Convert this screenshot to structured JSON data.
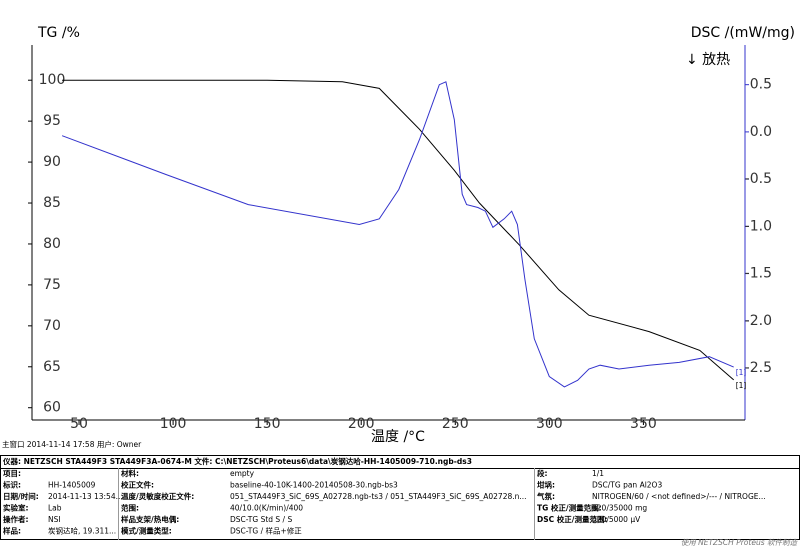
{
  "chart_data": {
    "type": "line",
    "y_label": "TG /%",
    "y2_label": "DSC /(mW/mg)",
    "y2_note": "↓ 放热",
    "x_label": "温度 /°C",
    "xlim": [
      25,
      404
    ],
    "xticks": [
      50,
      100,
      150,
      200,
      250,
      300,
      350
    ],
    "ylim": [
      58.5,
      104.3
    ],
    "yticks": [
      60,
      65,
      70,
      75,
      80,
      85,
      90,
      95,
      100
    ],
    "y2lim": [
      -3.05,
      0.92
    ],
    "y2ticks": [
      0.5,
      {
        "value": 0,
        "label": "0.0"
      },
      -0.5,
      {
        "value": -1,
        "label": "-1.0"
      },
      -1.5,
      {
        "value": -2,
        "label": "-2.0"
      },
      -2.5
    ],
    "series": [
      {
        "name": "[1]",
        "color": "#000000",
        "x": [
          41,
          100,
          150,
          190,
          209.6,
          231,
          249.5,
          262.8,
          284,
          305,
          321,
          353,
          380,
          398
        ],
        "values": [
          100,
          100,
          100,
          99.8,
          99,
          94,
          89,
          85,
          79.9,
          74.4,
          71.3,
          69.3,
          67,
          63.4
        ]
      },
      {
        "name": "[1]",
        "color": "#3333cc",
        "axis": "y2",
        "x": [
          41,
          96,
          140,
          199,
          209.6,
          220,
          231,
          241.5,
          245,
          249.5,
          253.7,
          256,
          262,
          266,
          270,
          276,
          280,
          283,
          287,
          292,
          300,
          308,
          315,
          321,
          327,
          337,
          353,
          369,
          385,
          398
        ],
        "values": [
          -0.04,
          -0.45,
          -0.77,
          -0.98,
          -0.92,
          -0.61,
          -0.08,
          0.5,
          0.53,
          0.13,
          -0.66,
          -0.77,
          -0.8,
          -0.84,
          -1.01,
          -0.92,
          -0.84,
          -0.98,
          -1.56,
          -2.19,
          -2.59,
          -2.7,
          -2.63,
          -2.51,
          -2.47,
          -2.51,
          -2.47,
          -2.44,
          -2.38,
          -2.49
        ]
      }
    ]
  },
  "info": {
    "status": "主窗口  2014-11-14 17:58  用户: Owner",
    "header": "仪器: NETZSCH STA449F3 STA449F3A-0674-M   文件: C:\\NETZSCH\\Proteus6\\data\\炭钢达哈-HH-1405009-710.ngb-ds3",
    "rows": [
      [
        "项目:",
        "",
        "材料:",
        "empty",
        "段:",
        "1/1"
      ],
      [
        "标识:",
        "HH-1405009",
        "校正文件:",
        "baseline-40-10K-1400-20140508-30.ngb-bs3",
        "坩埚:",
        "DSC/TG pan Al2O3"
      ],
      [
        "日期/时间:",
        "2014-11-13 13:54...",
        "温度/灵敏度校正文件:",
        "051_STA449F3_SiC_69S_A02728.ngb-ts3 / 051_STA449F3_SiC_69S_A02728.n...",
        "气氛:",
        "NITROGEN/60 / <not defined>/--- / NITROGE..."
      ],
      [
        "实验室:",
        "Lab",
        "范围:",
        "40/10.0(K/min)/400",
        "TG 校正/测量范围:",
        "020/35000 mg"
      ],
      [
        "操作者:",
        "NSI",
        "样品支架/热电偶:",
        "DSC-TG Std S / S",
        "DSC 校正/测量范围:",
        "020/5000 µV"
      ],
      [
        "样品:",
        "炭钢达哈, 19.311...",
        "模式/测量类型:",
        "DSC-TG / 样品+修正",
        "",
        ""
      ]
    ],
    "footer": "使用 NETZSCH Proteus 软件制造"
  }
}
